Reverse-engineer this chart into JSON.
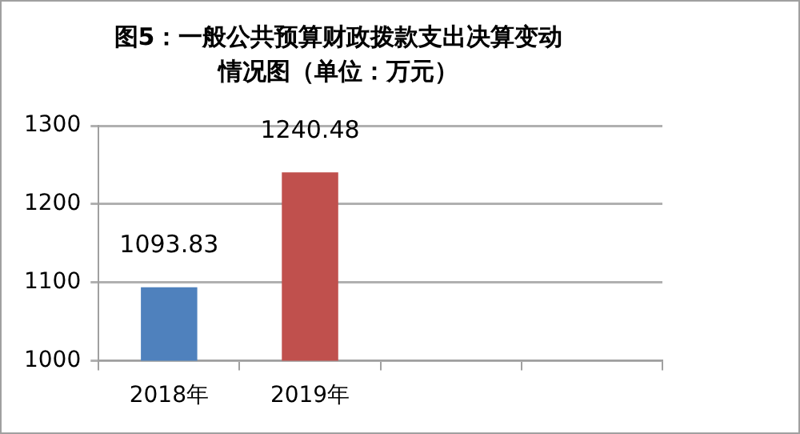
{
  "chart_data": {
    "type": "bar",
    "title": "图5：一般公共预算财政拨款支出决算变动情况图（单位：万元）",
    "categories": [
      "2018年",
      "2019年",
      null,
      null
    ],
    "values": [
      1093.83,
      1240.48,
      null,
      null
    ],
    "colors": [
      "#4f81bd",
      "#c0504d",
      null,
      null
    ],
    "ylim": [
      1000,
      1300
    ],
    "yticks": [
      1000,
      1100,
      1200,
      1300
    ],
    "grid": "y",
    "data_labels": true,
    "legend": false
  }
}
